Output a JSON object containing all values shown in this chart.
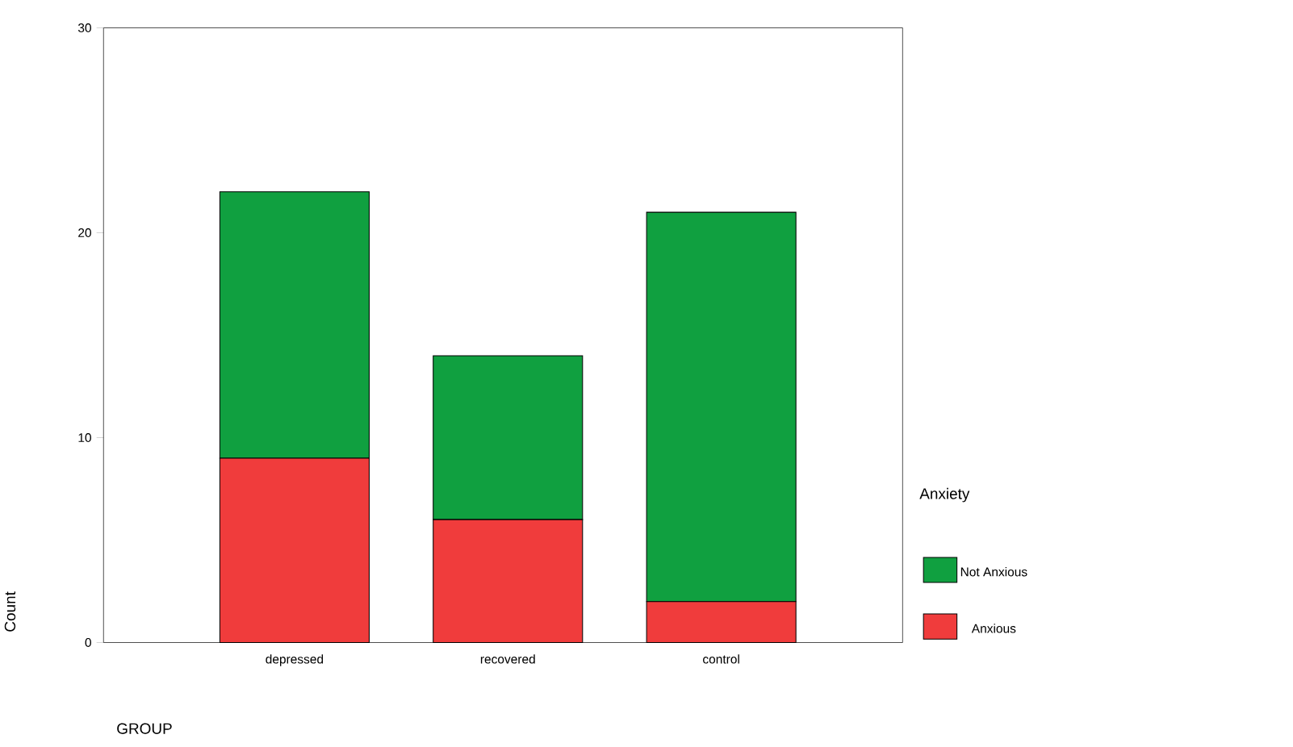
{
  "chart_data": {
    "type": "bar",
    "stacked": true,
    "categories": [
      "depressed",
      "recovered",
      "control"
    ],
    "series": [
      {
        "name": "Anxious",
        "color": "#f03c3c",
        "values": [
          9,
          6,
          2
        ]
      },
      {
        "name": "Not Anxious",
        "color": "#10a040",
        "values": [
          13,
          8,
          19
        ]
      }
    ],
    "ylim": [
      0,
      30
    ],
    "yticks": [
      0,
      10,
      20,
      30
    ],
    "xlabel": "GROUP",
    "ylabel": "Count",
    "legend_title": "Anxiety",
    "legend": "right"
  }
}
